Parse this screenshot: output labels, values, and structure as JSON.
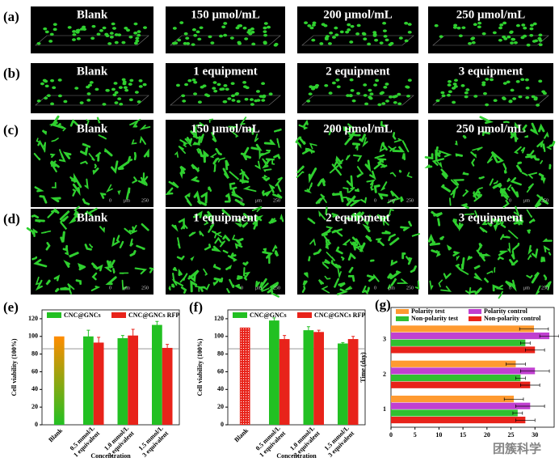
{
  "image_panels": [
    {
      "label": "(a)",
      "titles": [
        "Blank",
        "150 μmol/mL",
        "200 μmol/mL",
        "250 μmol/mL"
      ]
    },
    {
      "label": "(b)",
      "titles": [
        "Blank",
        "1 equipment",
        "2 equipment",
        "3 equipment"
      ]
    },
    {
      "label": "(c)",
      "titles": [
        "Blank",
        "150 μmol/mL",
        "200 μmol/mL",
        "250 μmol/mL"
      ],
      "scale_bar": [
        "0",
        "μm",
        "250"
      ]
    },
    {
      "label": "(d)",
      "titles": [
        "Blank",
        "1 equipment",
        "2 equipment",
        "3 equipment"
      ],
      "scale_bar": [
        "0",
        "μm",
        "250"
      ]
    }
  ],
  "chart_data": [
    {
      "type": "bar",
      "panel_label": "(e)",
      "y_label": "Cell viability (100%)",
      "x_label": "Concentration",
      "categories": [
        [
          "Blank"
        ],
        [
          "0.5 mmol/L",
          "1 equivalent"
        ],
        [
          "1.0 mmol/L",
          "2 equivalent"
        ],
        [
          "1.5 mmol/L",
          "3 equivalent"
        ]
      ],
      "series": [
        {
          "color": [
            "#ff8c00",
            "#22c022"
          ],
          "values": [
            100,
            null,
            null,
            null
          ]
        },
        {
          "name": "CNC@GNCs",
          "color": "#22c022",
          "values": [
            null,
            100,
            98,
            113
          ],
          "errors": [
            null,
            7,
            3,
            4
          ]
        },
        {
          "name": "CNC@GNCs RFP",
          "color": "#e8231a",
          "values": [
            null,
            93,
            101,
            87
          ],
          "errors": [
            null,
            6,
            7,
            4
          ]
        }
      ],
      "ylim": [
        0,
        130
      ],
      "yticks": [
        0,
        20,
        40,
        60,
        80,
        100,
        120
      ],
      "reference_line": 86
    },
    {
      "type": "bar",
      "panel_label": "(f)",
      "y_label": "Cell viability (100%)",
      "x_label": "Concentration",
      "categories": [
        [
          "Blank"
        ],
        [
          "0.5 mmol/L",
          "1 equivalent"
        ],
        [
          "1.0 mmol/L",
          "2 equivalent"
        ],
        [
          "1.5 mmol/L",
          "3 equivalent"
        ]
      ],
      "series": [
        {
          "color": "#e8231a",
          "values": [
            110,
            null,
            null,
            null
          ]
        },
        {
          "name": "CNC@GNCs",
          "color": "#22c022",
          "values": [
            null,
            118,
            107,
            92
          ],
          "errors": [
            null,
            3,
            4,
            1
          ]
        },
        {
          "name": "CNC@GNCs RFP",
          "color": "#e8231a",
          "values": [
            null,
            97,
            105,
            97
          ],
          "errors": [
            null,
            4,
            2,
            3
          ]
        }
      ],
      "ylim": [
        0,
        130
      ],
      "yticks": [
        0,
        20,
        40,
        60,
        80,
        100,
        120
      ],
      "reference_line": 86
    },
    {
      "type": "hbar",
      "panel_label": "(g)",
      "y_label": "Time (day)",
      "categories": [
        "1",
        "2",
        "3"
      ],
      "series": [
        {
          "name": "Polarity test",
          "color": "#ff9a30",
          "values": [
            25.6,
            26,
            29.8
          ],
          "errors": [
            2,
            2,
            3
          ]
        },
        {
          "name": "Polarity control",
          "color": "#c040d0",
          "values": [
            29,
            30,
            33
          ],
          "errors": [
            3,
            3,
            2
          ]
        },
        {
          "name": "Non-polarity test",
          "color": "#30c030",
          "values": [
            26.4,
            27,
            28
          ],
          "errors": [
            1,
            1,
            1
          ]
        },
        {
          "name": "Non-polarity control",
          "color": "#e8231a",
          "values": [
            28,
            29,
            30
          ],
          "errors": [
            2,
            2,
            2
          ]
        }
      ],
      "xlim": [
        0,
        34
      ],
      "xticks": [
        0,
        5,
        10,
        15,
        20,
        25,
        30
      ]
    }
  ],
  "watermark": "团簇科学"
}
